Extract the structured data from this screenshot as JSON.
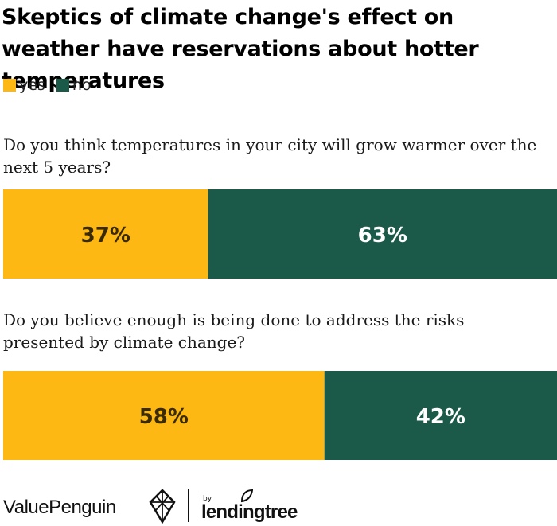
{
  "title": "Skeptics of climate change's effect on weather have reservations about hotter temperatures",
  "legend": [
    {
      "label": "yes",
      "color": "#fdb813"
    },
    {
      "label": "no",
      "color": "#1b5949"
    }
  ],
  "footer": {
    "brand": "ValuePenguin",
    "by": "by",
    "partner": "lendingtree"
  },
  "chart_data": {
    "type": "bar",
    "orientation": "horizontal",
    "stacked": true,
    "normalized": true,
    "categories": [
      "Do you think temperatures in your city will grow warmer over the next 5 years?",
      "Do you believe enough is being done to address the risks presented by climate change?"
    ],
    "series": [
      {
        "name": "yes",
        "values": [
          37,
          58
        ],
        "labels": [
          "37%",
          "58%"
        ],
        "color": "#fdb813",
        "label_color": "#3a2a00"
      },
      {
        "name": "no",
        "values": [
          63,
          42
        ],
        "labels": [
          "63%",
          "42%"
        ],
        "color": "#1b5949",
        "label_color": "#ffffff"
      }
    ],
    "xlim": [
      0,
      100
    ],
    "grid": false,
    "legend_position": "top-left"
  }
}
